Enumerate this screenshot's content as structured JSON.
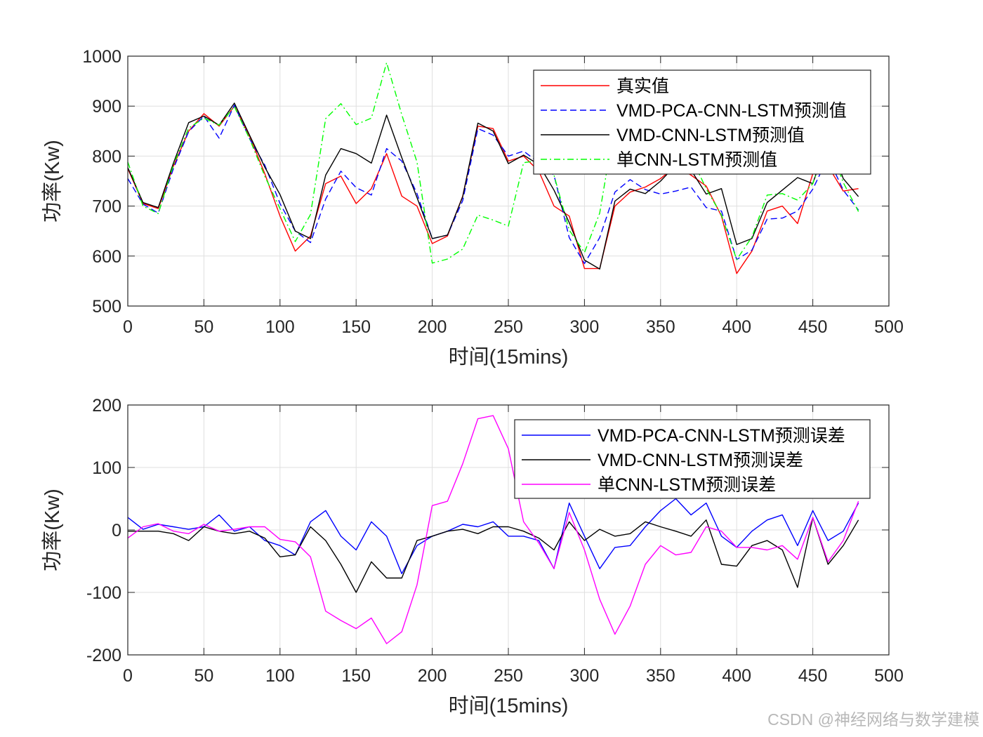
{
  "watermark": "CSDN @神经网络与数学建模",
  "chart_data": [
    {
      "type": "line",
      "xlabel": "时间(15mins)",
      "ylabel": "功率(Kw)",
      "xlim": [
        0,
        500
      ],
      "ylim": [
        500,
        1000
      ],
      "xticks": [
        0,
        50,
        100,
        150,
        200,
        250,
        300,
        350,
        400,
        450,
        500
      ],
      "yticks": [
        500,
        600,
        700,
        800,
        900,
        1000
      ],
      "grid": true,
      "legend_position": "top-right",
      "x": [
        0,
        10,
        20,
        30,
        40,
        50,
        60,
        70,
        80,
        90,
        100,
        110,
        120,
        130,
        140,
        150,
        160,
        170,
        180,
        190,
        200,
        210,
        220,
        230,
        240,
        250,
        260,
        270,
        280,
        290,
        300,
        310,
        320,
        330,
        340,
        350,
        360,
        370,
        380,
        390,
        400,
        410,
        420,
        430,
        440,
        450,
        460,
        470,
        480
      ],
      "series": [
        {
          "name": "真实值",
          "color": "#ff0000",
          "style": "solid",
          "values": [
            775,
            705,
            695,
            780,
            850,
            885,
            860,
            900,
            840,
            765,
            680,
            610,
            640,
            745,
            760,
            705,
            735,
            805,
            720,
            700,
            625,
            640,
            720,
            860,
            855,
            790,
            800,
            770,
            700,
            680,
            575,
            575,
            700,
            728,
            738,
            755,
            780,
            762,
            740,
            680,
            565,
            610,
            690,
            700,
            665,
            765,
            780,
            730,
            735
          ]
        },
        {
          "name": "VMD-PCA-CNN-LSTM预测值",
          "color": "#0000ff",
          "style": "dashed",
          "values": [
            755,
            704,
            686,
            775,
            849,
            880,
            836,
            902,
            835,
            782,
            705,
            650,
            627,
            714,
            770,
            737,
            722,
            815,
            790,
            725,
            635,
            642,
            711,
            855,
            842,
            800,
            810,
            787,
            762,
            637,
            585,
            637,
            728,
            753,
            733,
            724,
            730,
            738,
            697,
            690,
            593,
            612,
            674,
            676,
            690,
            734,
            797,
            732,
            692
          ]
        },
        {
          "name": "VMD-CNN-LSTM预测值",
          "color": "#000000",
          "style": "solid",
          "values": [
            777,
            707,
            697,
            786,
            867,
            880,
            862,
            906,
            842,
            778,
            723,
            650,
            635,
            762,
            815,
            805,
            786,
            882,
            797,
            717,
            635,
            642,
            719,
            866,
            850,
            785,
            802,
            783,
            732,
            667,
            592,
            574,
            710,
            734,
            725,
            750,
            782,
            772,
            724,
            735,
            623,
            635,
            707,
            732,
            757,
            745,
            835,
            755,
            719
          ]
        },
        {
          "name": "单CNN-LSTM预测值",
          "color": "#00ff00",
          "style": "dashdot",
          "values": [
            788,
            700,
            685,
            782,
            856,
            876,
            862,
            899,
            835,
            760,
            695,
            629,
            683,
            875,
            905,
            863,
            876,
            987,
            883,
            788,
            586,
            594,
            614,
            682,
            672,
            660,
            787,
            791,
            762,
            652,
            607,
            686,
            867,
            850,
            793,
            780,
            820,
            798,
            735,
            682,
            593,
            638,
            722,
            725,
            712,
            745,
            831,
            747,
            689
          ]
        }
      ]
    },
    {
      "type": "line",
      "xlabel": "时间(15mins)",
      "ylabel": "功率(Kw)",
      "xlim": [
        0,
        500
      ],
      "ylim": [
        -200,
        200
      ],
      "xticks": [
        0,
        50,
        100,
        150,
        200,
        250,
        300,
        350,
        400,
        450,
        500
      ],
      "yticks": [
        -200,
        -100,
        0,
        100,
        200
      ],
      "grid": true,
      "legend_position": "top-right",
      "x": [
        0,
        10,
        20,
        30,
        40,
        50,
        60,
        70,
        80,
        90,
        100,
        110,
        120,
        130,
        140,
        150,
        160,
        170,
        180,
        190,
        200,
        210,
        220,
        230,
        240,
        250,
        260,
        270,
        280,
        290,
        300,
        310,
        320,
        330,
        340,
        350,
        360,
        370,
        380,
        390,
        400,
        410,
        420,
        430,
        440,
        450,
        460,
        470,
        480
      ],
      "series": [
        {
          "name": "VMD-PCA-CNN-LSTM预测误差",
          "color": "#0000ff",
          "style": "solid",
          "values": [
            20,
            1,
            9,
            5,
            1,
            5,
            24,
            -2,
            5,
            -17,
            -25,
            -40,
            13,
            31,
            -10,
            -32,
            13,
            -10,
            -70,
            -25,
            -10,
            -2,
            9,
            5,
            13,
            -10,
            -10,
            -17,
            -62,
            43,
            -10,
            -62,
            -28,
            -25,
            5,
            31,
            50,
            24,
            43,
            -10,
            -28,
            -2,
            16,
            24,
            -25,
            31,
            -17,
            -2,
            43
          ]
        },
        {
          "name": "VMD-CNN-LSTM预测误差",
          "color": "#000000",
          "style": "solid",
          "values": [
            -2,
            -2,
            -2,
            -6,
            -17,
            5,
            -2,
            -6,
            -2,
            -13,
            -43,
            -40,
            5,
            -17,
            -55,
            -100,
            -51,
            -77,
            -77,
            -17,
            -10,
            -2,
            1,
            -6,
            5,
            5,
            -2,
            -13,
            -32,
            13,
            -17,
            1,
            -10,
            -6,
            13,
            5,
            -2,
            -10,
            16,
            -55,
            -58,
            -25,
            -17,
            -32,
            -92,
            20,
            -55,
            -25,
            16
          ]
        },
        {
          "name": "单CNN-LSTM预测误差",
          "color": "#ff00ff",
          "style": "solid",
          "values": [
            -13,
            5,
            10,
            -2,
            -6,
            9,
            -2,
            1,
            5,
            5,
            -15,
            -19,
            -43,
            -130,
            -145,
            -158,
            -141,
            -182,
            -163,
            -88,
            39,
            46,
            106,
            178,
            183,
            130,
            13,
            -21,
            -62,
            28,
            -32,
            -111,
            -167,
            -122,
            -55,
            -25,
            -40,
            -36,
            5,
            -2,
            -28,
            -28,
            -32,
            -25,
            -47,
            20,
            -51,
            -17,
            46
          ]
        }
      ]
    }
  ]
}
